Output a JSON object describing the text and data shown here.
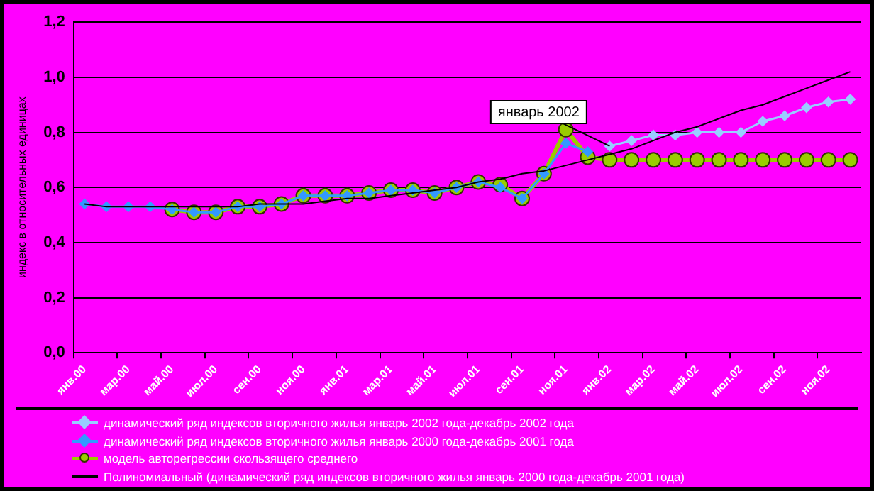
{
  "chart_data": {
    "type": "line",
    "ylabel": "индекс в относительных единицах",
    "categories": [
      "янв.00",
      null,
      "мар.00",
      null,
      "май.00",
      null,
      "июл.00",
      null,
      "сен.00",
      null,
      "ноя.00",
      null,
      "янв.01",
      null,
      "мар.01",
      null,
      "май.01",
      null,
      "июл.01",
      null,
      "сен.01",
      null,
      "ноя.01",
      null,
      "янв.02",
      null,
      "мар.02",
      null,
      "май.02",
      null,
      "июл.02",
      null,
      "сен.02",
      null,
      "ноя.02",
      null
    ],
    "series": [
      {
        "name": "динамический ряд индексов вторичного жилья январь 2002 года-декабрь 2002 года",
        "color": "#99ccff",
        "marker": "diamond",
        "values": [
          null,
          null,
          null,
          null,
          null,
          null,
          null,
          null,
          null,
          null,
          null,
          null,
          null,
          null,
          null,
          null,
          null,
          null,
          null,
          null,
          null,
          null,
          null,
          null,
          0.75,
          0.77,
          0.79,
          0.79,
          0.8,
          0.8,
          0.8,
          0.84,
          0.86,
          0.89,
          0.91,
          0.92
        ]
      },
      {
        "name": "динамический ряд индексов вторичного жилья январь 2000 года-декабрь 2001 года",
        "color": "#3399ff",
        "marker": "diamond",
        "values": [
          0.54,
          0.53,
          0.53,
          0.53,
          0.52,
          0.51,
          0.51,
          0.53,
          0.53,
          0.54,
          0.57,
          0.57,
          0.57,
          0.58,
          0.59,
          0.59,
          0.58,
          0.6,
          0.62,
          0.6,
          0.56,
          0.65,
          0.76,
          0.73,
          null,
          null,
          null,
          null,
          null,
          null,
          null,
          null,
          null,
          null,
          null,
          null
        ]
      },
      {
        "name": "модель авторегрессии скользящего среднего",
        "color": "#99cc00",
        "marker": "circle",
        "values": [
          null,
          null,
          null,
          null,
          0.52,
          0.51,
          0.51,
          0.53,
          0.53,
          0.54,
          0.57,
          0.57,
          0.57,
          0.58,
          0.59,
          0.59,
          0.58,
          0.6,
          0.62,
          0.61,
          0.56,
          0.65,
          0.81,
          0.71,
          0.7,
          0.7,
          0.7,
          0.7,
          0.7,
          0.7,
          0.7,
          0.7,
          0.7,
          0.7,
          0.7,
          0.7
        ]
      },
      {
        "name": "Полиномиальный (динамический ряд индексов вторичного жилья январь 2000 года-декабрь 2001 года)",
        "color": "#000000",
        "marker": "none",
        "values": [
          0.54,
          0.53,
          0.53,
          0.53,
          0.53,
          0.53,
          0.53,
          0.53,
          0.54,
          0.54,
          0.54,
          0.55,
          0.56,
          0.56,
          0.57,
          0.58,
          0.59,
          0.6,
          0.62,
          0.63,
          0.65,
          0.66,
          0.68,
          0.7,
          0.72,
          0.74,
          0.77,
          0.8,
          0.82,
          0.85,
          0.88,
          0.9,
          0.93,
          0.96,
          0.99,
          1.02
        ]
      }
    ],
    "ylim": [
      0,
      1.2
    ],
    "yticks": [
      {
        "value": 0,
        "label": "0,0"
      },
      {
        "value": 0.2,
        "label": "0,2"
      },
      {
        "value": 0.4,
        "label": "0,4"
      },
      {
        "value": 0.6,
        "label": "0,6"
      },
      {
        "value": 0.8,
        "label": "0,8"
      },
      {
        "value": 1.0,
        "label": "1,0"
      },
      {
        "value": 1.2,
        "label": "1,2"
      }
    ],
    "annotations": [
      {
        "text": "январь 2002",
        "x": "янв.02",
        "y": 0.75
      }
    ],
    "grid": "y",
    "legend": "bottom",
    "line_style": "solid"
  }
}
